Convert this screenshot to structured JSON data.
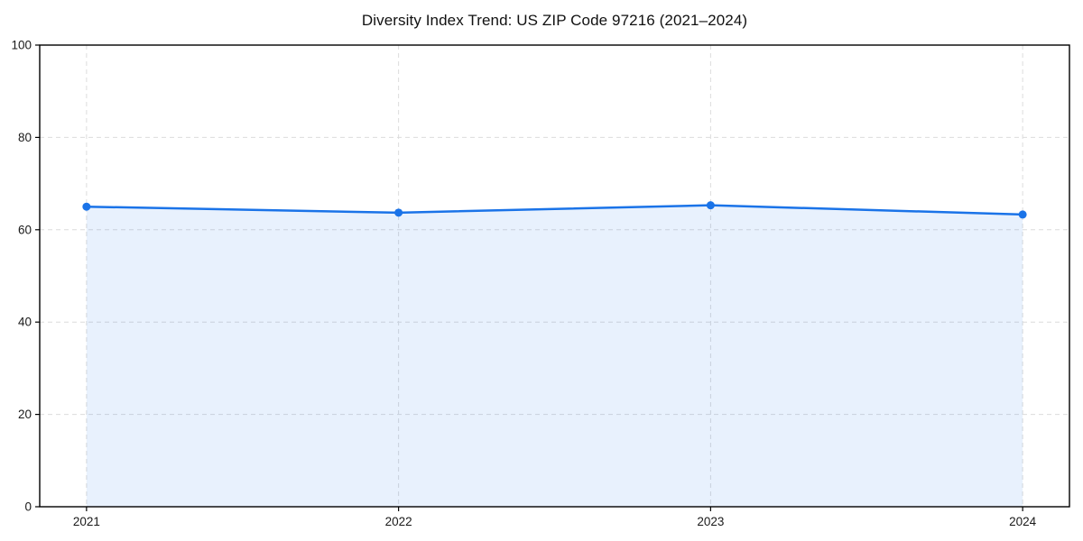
{
  "chart_data": {
    "type": "area",
    "title": "Diversity Index Trend: US ZIP Code 97216 (2021–2024)",
    "x": [
      2021,
      2022,
      2023,
      2024
    ],
    "x_tick_labels": [
      "2021",
      "2022",
      "2023",
      "2024"
    ],
    "series": [
      {
        "name": "Diversity Index",
        "values": [
          65.0,
          63.7,
          65.3,
          63.3
        ]
      }
    ],
    "xlabel": "",
    "ylabel": "",
    "xlim": [
      2020.85,
      2024.15
    ],
    "ylim": [
      0,
      100
    ],
    "yticks": [
      0,
      20,
      40,
      60,
      80,
      100
    ],
    "ytick_labels": [
      "0",
      "20",
      "40",
      "60",
      "80",
      "100"
    ],
    "grid": true,
    "grid_style": "dashed",
    "legend_position": "none",
    "colors": {
      "line": "#1a73e8",
      "marker": "#1a73e8",
      "fill": "#1a73e8",
      "fill_opacity": 0.1,
      "grid": "#dcdcdc",
      "axis_frame": "#000000",
      "tick_label": "#1a1a1a",
      "title": "#111111",
      "background": "#ffffff"
    }
  }
}
